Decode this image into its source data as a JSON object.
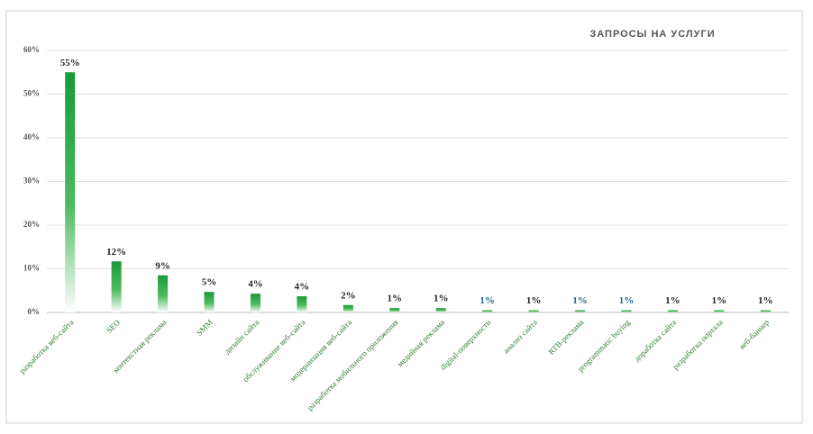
{
  "chart_data": {
    "type": "bar",
    "title": "ЗАПРОСЫ НА УСЛУГИ",
    "categories": [
      "разработка веб-сайта",
      "SEO",
      "контекстная реклама",
      "SMM",
      "дизайн сайта",
      "обслуживание веб-сайта",
      "модернизация веб-сайта",
      "разработка мобильного приложения",
      "медийная реклама",
      "digital-поверхности",
      "анализ сайта",
      "RTB-реклама",
      "programmatic buying",
      "доработка сайта",
      "разработка портала",
      "веб-баннер"
    ],
    "values": [
      55,
      11.7,
      8.5,
      4.7,
      4.3,
      3.7,
      1.7,
      1.0,
      1.0,
      0.5,
      0.5,
      0.5,
      0.5,
      0.5,
      0.5,
      0.5
    ],
    "value_labels": [
      "55%",
      "12%",
      "9%",
      "5%",
      "4%",
      "4%",
      "2%",
      "1%",
      "1%",
      "1%",
      "1%",
      "1%",
      "1%",
      "1%",
      "1%",
      "1%"
    ],
    "value_label_colors": [
      "#222222",
      "#222222",
      "#222222",
      "#222222",
      "#222222",
      "#222222",
      "#222222",
      "#222222",
      "#222222",
      "#1f6e8c",
      "#222222",
      "#1f6e8c",
      "#1f6e8c",
      "#222222",
      "#222222",
      "#222222"
    ],
    "color": "#1a9a3a",
    "ylim": [
      0,
      60
    ],
    "yticks": [
      {
        "value": 0,
        "label": "0%"
      },
      {
        "value": 10,
        "label": "10%"
      },
      {
        "value": 20,
        "label": "20%"
      },
      {
        "value": 30,
        "label": "30%"
      },
      {
        "value": 40,
        "label": "40%"
      },
      {
        "value": 50,
        "label": "50%"
      },
      {
        "value": 60,
        "label": "60%"
      }
    ],
    "grid": true
  }
}
